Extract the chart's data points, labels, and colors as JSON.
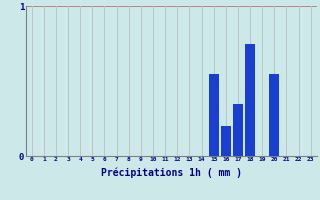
{
  "categories": [
    0,
    1,
    2,
    3,
    4,
    5,
    6,
    7,
    8,
    9,
    10,
    11,
    12,
    13,
    14,
    15,
    16,
    17,
    18,
    19,
    20,
    21,
    22,
    23
  ],
  "values": [
    0,
    0,
    0,
    0,
    0,
    0,
    0,
    0,
    0,
    0,
    0,
    0,
    0,
    0,
    0,
    0.55,
    0.2,
    0.35,
    0.75,
    0,
    0.55,
    0,
    0,
    0
  ],
  "bar_color": "#1a3fcc",
  "background_color": "#cce8e8",
  "grid_color_h": "#c08080",
  "grid_color_v": "#b8c8c8",
  "axis_color": "#000080",
  "spine_color": "#808080",
  "xlabel": "Précipitations 1h ( mm )",
  "ylim": [
    0,
    1.0
  ],
  "xlim": [
    -0.5,
    23.5
  ],
  "yticks": [
    0,
    1
  ],
  "ylabel": "",
  "title": ""
}
